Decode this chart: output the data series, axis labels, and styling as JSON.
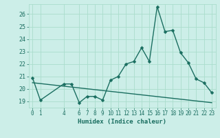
{
  "xlabel": "Humidex (Indice chaleur)",
  "background_color": "#cceee8",
  "grid_color": "#aaddcc",
  "line_color": "#1a6e60",
  "xlim": [
    -0.5,
    23.5
  ],
  "ylim": [
    18.5,
    26.8
  ],
  "yticks": [
    19,
    20,
    21,
    22,
    23,
    24,
    25,
    26
  ],
  "xtick_positions": [
    0,
    1,
    4,
    6,
    7,
    8,
    9,
    10,
    11,
    12,
    13,
    14,
    15,
    16,
    17,
    18,
    19,
    20,
    21,
    22,
    23
  ],
  "xtick_labels": [
    "0",
    "1",
    "4",
    "6",
    "7",
    "8",
    "9",
    "10",
    "11",
    "12",
    "13",
    "14",
    "15",
    "16",
    "17",
    "18",
    "19",
    "20",
    "21",
    "22",
    "23"
  ],
  "series1_x": [
    0,
    1,
    4,
    5,
    6,
    7,
    8,
    9,
    10,
    11,
    12,
    13,
    14,
    15,
    16,
    17,
    18,
    19,
    20,
    21,
    22,
    23
  ],
  "series1_y": [
    20.9,
    19.1,
    20.4,
    20.4,
    18.9,
    19.4,
    19.4,
    19.1,
    20.7,
    21.0,
    22.0,
    22.2,
    23.3,
    22.2,
    26.6,
    24.6,
    24.7,
    22.9,
    22.1,
    20.8,
    20.5,
    19.7
  ],
  "series2_x": [
    0,
    23
  ],
  "series2_y": [
    20.5,
    18.9
  ],
  "marker_size": 2.5,
  "line_width": 1.0
}
